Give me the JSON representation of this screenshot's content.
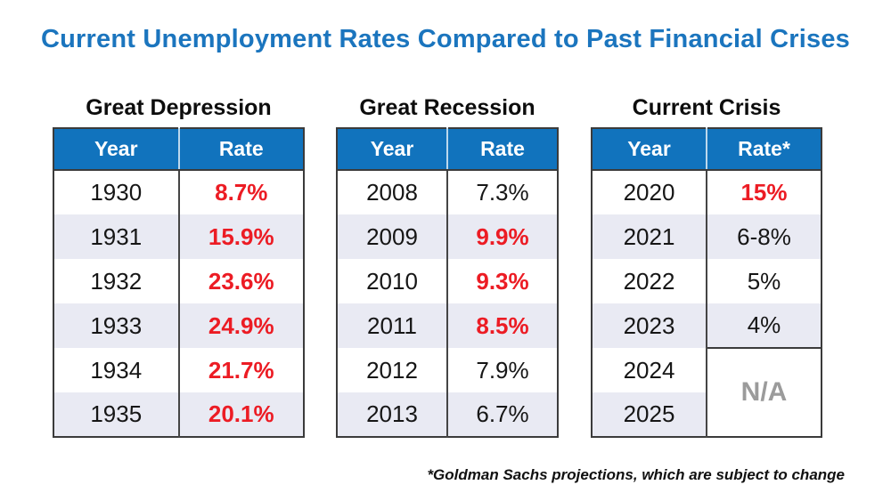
{
  "title": "Current Unemployment Rates Compared to Past Financial Crises",
  "footnote": "*Goldman Sachs projections, which are subject to change",
  "colors": {
    "title_blue": "#1B75BE",
    "header_blue": "#1173BD",
    "rate_red": "#EC1C24",
    "row_stripe": "#E9EAF3",
    "na_gray": "#9B9B9B"
  },
  "tables": [
    {
      "caption": "Great Depression",
      "columns": [
        "Year",
        "Rate"
      ],
      "rows": [
        {
          "year": "1930",
          "rate": "8.7%",
          "red": true
        },
        {
          "year": "1931",
          "rate": "15.9%",
          "red": true
        },
        {
          "year": "1932",
          "rate": "23.6%",
          "red": true
        },
        {
          "year": "1933",
          "rate": "24.9%",
          "red": true
        },
        {
          "year": "1934",
          "rate": "21.7%",
          "red": true
        },
        {
          "year": "1935",
          "rate": "20.1%",
          "red": true
        }
      ]
    },
    {
      "caption": "Great Recession",
      "columns": [
        "Year",
        "Rate"
      ],
      "rows": [
        {
          "year": "2008",
          "rate": "7.3%"
        },
        {
          "year": "2009",
          "rate": "9.9%",
          "red": true
        },
        {
          "year": "2010",
          "rate": "9.3%",
          "red": true
        },
        {
          "year": "2011",
          "rate": "8.5%",
          "red": true
        },
        {
          "year": "2012",
          "rate": "7.9%"
        },
        {
          "year": "2013",
          "rate": "6.7%"
        }
      ]
    },
    {
      "caption": "Current Crisis",
      "columns": [
        "Year",
        "Rate*"
      ],
      "rows": [
        {
          "year": "2020",
          "rate": "15%",
          "red": true
        },
        {
          "year": "2021",
          "rate": "6-8%"
        },
        {
          "year": "2022",
          "rate": "5%"
        },
        {
          "year": "2023",
          "rate": "4%"
        },
        {
          "year": "2024",
          "rate": "N/A",
          "na": true,
          "rowspan": 2
        },
        {
          "year": "2025"
        }
      ]
    }
  ]
}
